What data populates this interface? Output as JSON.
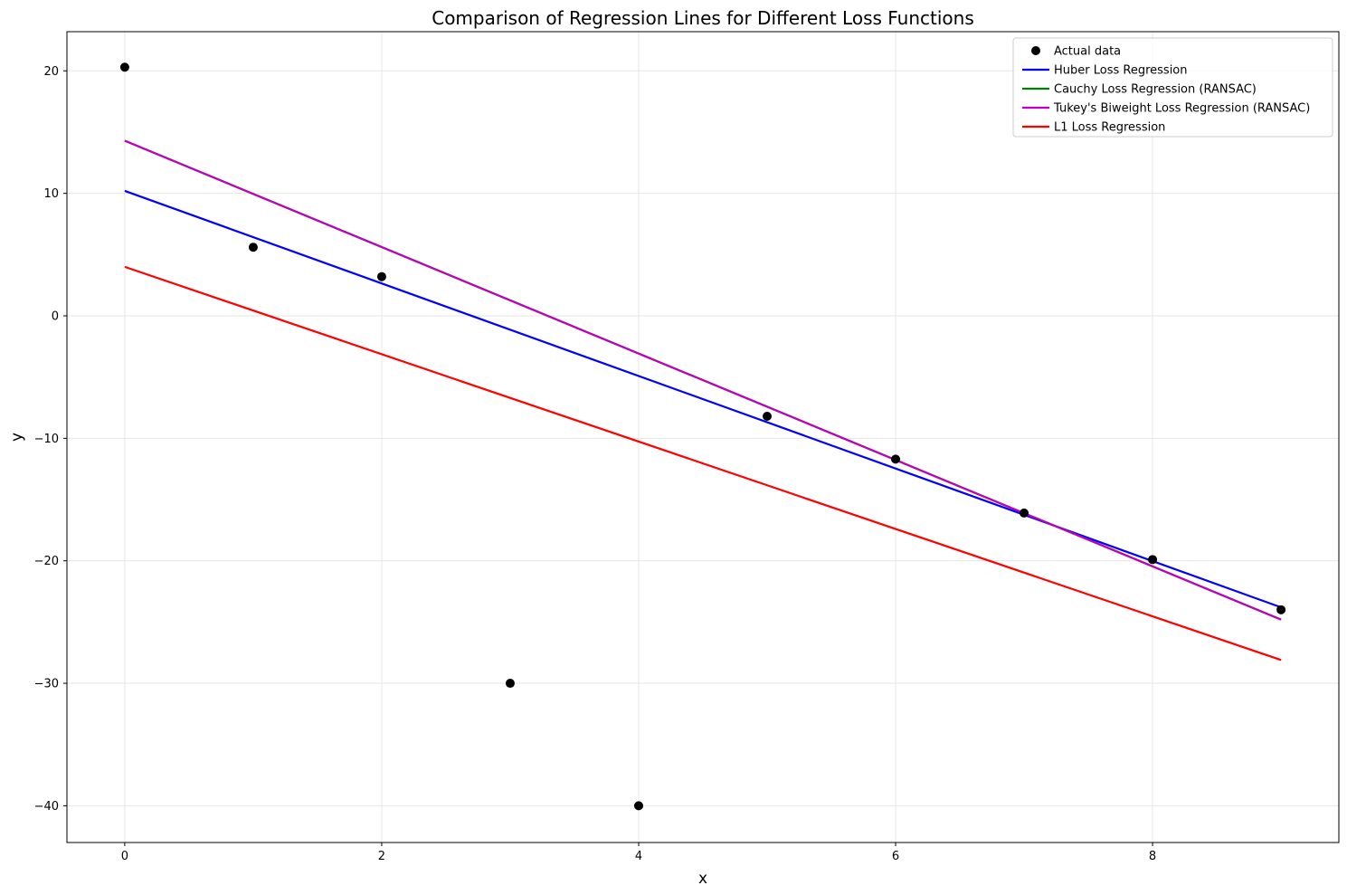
{
  "chart_data": {
    "type": "scatter",
    "title": "Comparison of Regression Lines for Different Loss Functions",
    "xlabel": "x",
    "ylabel": "y",
    "xlim": [
      -0.45,
      9.45
    ],
    "ylim": [
      -43.0,
      23.2
    ],
    "xticks": [
      0,
      2,
      4,
      6,
      8
    ],
    "yticks": [
      20,
      10,
      0,
      -10,
      -20,
      -30,
      -40
    ],
    "grid": true,
    "legend_position": "top-right",
    "points": {
      "name": "Actual data",
      "color": "#000000",
      "x": [
        0,
        1,
        2,
        3,
        4,
        5,
        6,
        7,
        8,
        9
      ],
      "y": [
        20.3,
        5.6,
        3.2,
        -30.0,
        -40.0,
        -8.2,
        -11.7,
        -16.1,
        -19.9,
        -24.0
      ]
    },
    "series": [
      {
        "name": "Huber Loss Regression",
        "color": "#0000ff",
        "x": [
          0,
          9
        ],
        "y": [
          10.2,
          -23.8
        ]
      },
      {
        "name": "Cauchy Loss Regression (RANSAC)",
        "color": "#008000",
        "x": [
          0,
          9
        ],
        "y": [
          14.3,
          -24.8
        ]
      },
      {
        "name": "Tukey's Biweight Loss Regression (RANSAC)",
        "color": "#bf00bf",
        "x": [
          0,
          9
        ],
        "y": [
          14.3,
          -24.8
        ]
      },
      {
        "name": "L1 Loss Regression",
        "color": "#ff0000",
        "x": [
          0,
          9
        ],
        "y": [
          4.0,
          -28.1
        ]
      }
    ]
  }
}
